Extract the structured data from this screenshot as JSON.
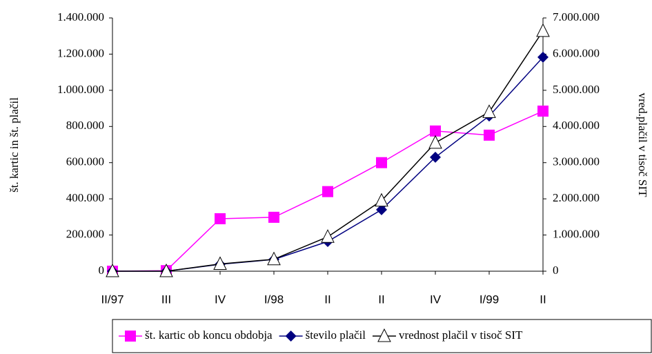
{
  "chart_data": {
    "type": "line",
    "categories": [
      "II/97",
      "III",
      "IV",
      "I/98",
      "II",
      "II",
      "IV",
      "I/99",
      "II"
    ],
    "y_label": "št. kartic in št. plačil",
    "y2_label": "vred.plačil v tisoč SIT",
    "ylim": [
      0,
      1400000
    ],
    "yticks": [
      0,
      {
        "value": 200000,
        "label": "200.000"
      },
      {
        "value": 400000,
        "label": "400.000"
      },
      {
        "value": 600000,
        "label": "600.000"
      },
      {
        "value": 800000,
        "label": "800.000"
      },
      {
        "value": 1000000,
        "label": "1.000.000"
      },
      {
        "value": 1200000,
        "label": "1.200.000"
      },
      {
        "value": 1400000,
        "label": "1.400.000"
      }
    ],
    "y2lim": [
      0,
      7000000
    ],
    "y2ticks": [
      0,
      {
        "value": 1000000,
        "label": "1.000.000"
      },
      {
        "value": 2000000,
        "label": "2.000.000"
      },
      {
        "value": 3000000,
        "label": "3.000.000"
      },
      {
        "value": 4000000,
        "label": "4.000.000"
      },
      {
        "value": 5000000,
        "label": "5.000.000"
      },
      {
        "value": 6000000,
        "label": "6.000.000"
      },
      {
        "value": 7000000,
        "label": "7.000.000"
      }
    ],
    "legend": "bottom",
    "series": [
      {
        "name": "št. kartic ob koncu obdobja",
        "color": "#ff00ff",
        "marker": "square",
        "values": [
          0,
          3000,
          290000,
          298000,
          440000,
          600000,
          775000,
          752000,
          885000
        ]
      },
      {
        "name": "število plačil",
        "color": "#000080",
        "marker": "diamond",
        "values": [
          0,
          0,
          38000,
          65000,
          164000,
          340000,
          630000,
          858000,
          1183000
        ]
      },
      {
        "name": "vrednost plačil v tisoč SIT",
        "color": "#000000",
        "marker": "triangle",
        "axis": "y2",
        "values": [
          0,
          0,
          200000,
          330000,
          950000,
          1950000,
          3550000,
          4400000,
          6640000
        ]
      }
    ]
  }
}
